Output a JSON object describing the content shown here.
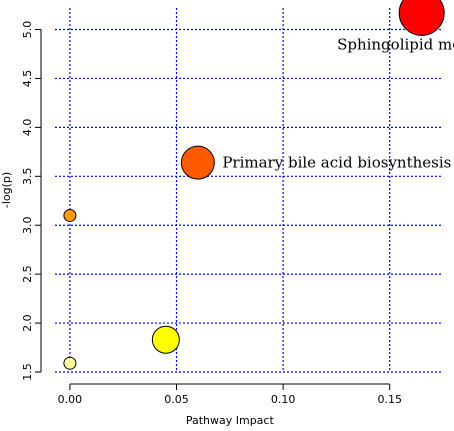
{
  "chart_data": {
    "type": "scatter",
    "title": "",
    "xlabel": "Pathway Impact",
    "ylabel": "-log(p)",
    "xlim": [
      -0.007,
      0.175
    ],
    "ylim": [
      1.5,
      5.22
    ],
    "x_ticks": [
      0.0,
      0.05,
      0.1,
      0.15
    ],
    "x_tick_labels": [
      "0.00",
      "0.05",
      "0.10",
      "0.15"
    ],
    "y_ticks": [
      1.5,
      2.0,
      2.5,
      3.0,
      3.5,
      4.0,
      4.5,
      5.0
    ],
    "y_tick_labels": [
      "1.5",
      "2.0",
      "2.5",
      "3.0",
      "3.5",
      "4.0",
      "4.5",
      "5.0"
    ],
    "grid": true,
    "points": [
      {
        "x": 0.165,
        "y": 5.17,
        "size": 3.0,
        "color": "#ff0000",
        "label": "Sphingolipid metabolism"
      },
      {
        "x": 0.06,
        "y": 3.64,
        "size": 2.2,
        "color": "#ff5a00",
        "label": "Primary bile acid biosynthesis"
      },
      {
        "x": 0.0,
        "y": 3.1,
        "size": 0.8,
        "color": "#ff9a00",
        "label": ""
      },
      {
        "x": 0.045,
        "y": 1.83,
        "size": 1.8,
        "color": "#ffff00",
        "label": ""
      },
      {
        "x": 0.0,
        "y": 1.59,
        "size": 0.8,
        "color": "#ffffa0",
        "label": ""
      }
    ]
  }
}
